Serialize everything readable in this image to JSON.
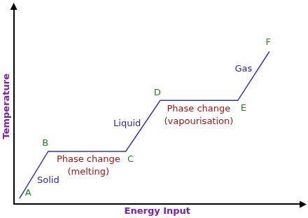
{
  "chart_data": {
    "type": "line",
    "x_label": "Energy Input",
    "y_label": "Temperature",
    "x": [
      2,
      12,
      39,
      51,
      78,
      89
    ],
    "values": [
      3,
      27,
      27,
      53,
      53,
      78
    ],
    "color": "#3333bb",
    "xlim": [
      0,
      100
    ],
    "ylim": [
      0,
      100
    ],
    "grid": false,
    "tick_labels": false,
    "annotations": [
      {
        "text": [
          "A"
        ],
        "x": 5,
        "y": 5.5,
        "color": "#1a8a1a"
      },
      {
        "text": [
          "B"
        ],
        "x": 11,
        "y": 31,
        "color": "#1a8a1a"
      },
      {
        "text": [
          "C"
        ],
        "x": 40.7,
        "y": 23,
        "color": "#1a8a1a"
      },
      {
        "text": [
          "D"
        ],
        "x": 50,
        "y": 56.7,
        "color": "#1a8a1a"
      },
      {
        "text": [
          "E"
        ],
        "x": 80,
        "y": 49,
        "color": "#1a8a1a"
      },
      {
        "text": [
          "F"
        ],
        "x": 88.6,
        "y": 82.5,
        "color": "#1a8a1a"
      },
      {
        "text": [
          "Solid"
        ],
        "x": 12,
        "y": 12,
        "color": "#2a2aa0"
      },
      {
        "text": [
          "Phase change",
          "(melting)"
        ],
        "x": 26,
        "y": 19.6,
        "color": "#a01818"
      },
      {
        "text": [
          "Liquid"
        ],
        "x": 39.5,
        "y": 41,
        "color": "#2a2aa0"
      },
      {
        "text": [
          "Phase change",
          "(vapourisation)"
        ],
        "x": 64.4,
        "y": 45.5,
        "color": "#a01818"
      },
      {
        "text": [
          "Gas"
        ],
        "x": 80,
        "y": 69,
        "color": "#2a2aa0"
      }
    ]
  }
}
